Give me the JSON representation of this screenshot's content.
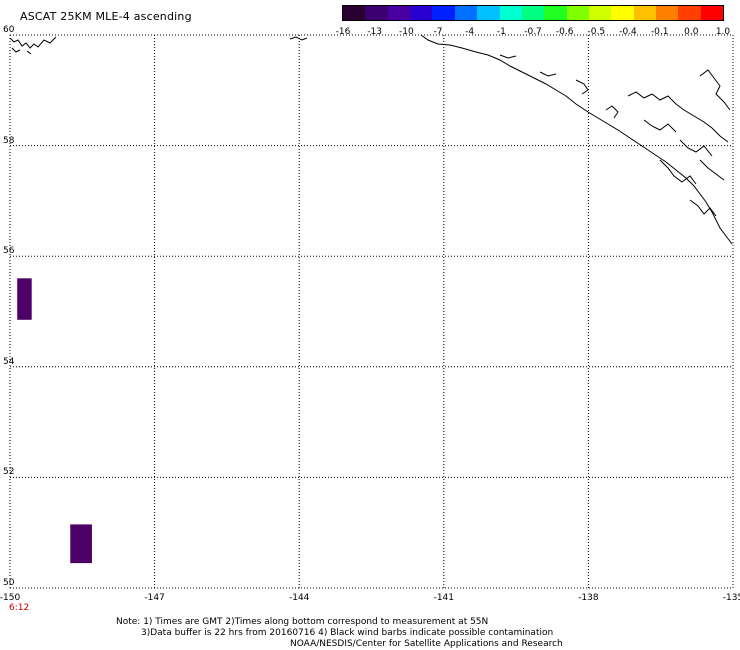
{
  "title": "ASCAT 25KM MLE-4 ascending",
  "colorbar": {
    "colors": [
      "#2a0030",
      "#3d0070",
      "#4a00a0",
      "#2a00d0",
      "#0020ff",
      "#0070ff",
      "#00c0ff",
      "#00ffd0",
      "#00ff80",
      "#20ff20",
      "#80ff00",
      "#d0ff00",
      "#ffff00",
      "#ffc000",
      "#ff8000",
      "#ff4000",
      "#ff0000"
    ],
    "labels": [
      "-16",
      "-13",
      "-10",
      "-7",
      "-4",
      "-1",
      "-0.7",
      "-0.6",
      "-0.5",
      "-0.4",
      "-0.1",
      "0.0",
      "1.0"
    ]
  },
  "lat_labels": [
    "60",
    "58",
    "56",
    "54",
    "52",
    "50"
  ],
  "lon_labels": [
    "-150",
    "-147",
    "-144",
    "-141",
    "-138",
    "-135"
  ],
  "time_label": "6:12",
  "data_cells": [
    {
      "lon_min": -149.85,
      "lon_max": -149.55,
      "lat_min": 54.85,
      "lat_max": 55.6,
      "color": "#4d0066"
    },
    {
      "lon_min": -148.75,
      "lon_max": -148.3,
      "lat_min": 50.45,
      "lat_max": 51.15,
      "color": "#4d0066"
    }
  ],
  "notes": {
    "line1": "Note: 1) Times are GMT 2)Times along bottom correspond to measurement at 55N",
    "line2": "3)Data buffer is 22 hrs from 20160716 4) Black wind barbs indicate possible contamination",
    "line3": "NOAA/NESDIS/Center for Satellite Applications and Research"
  }
}
